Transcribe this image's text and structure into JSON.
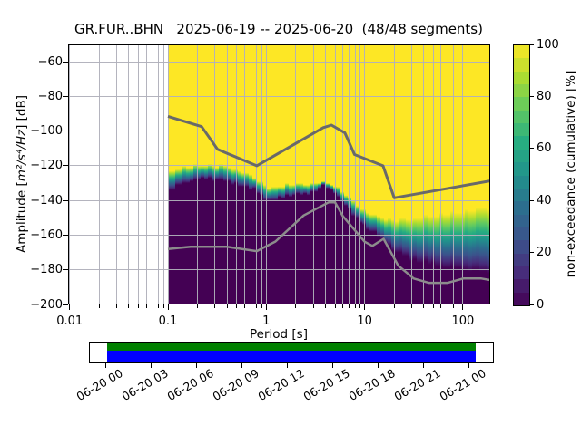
{
  "title": "GR.FUR..BHN   2025-06-19 -- 2025-06-20  (48/48 segments)",
  "chart_data": {
    "type": "heatmap",
    "title": "GR.FUR..BHN   2025-06-19 -- 2025-06-20  (48/48 segments)",
    "xlabel": "Period [s]",
    "ylabel": {
      "pre": "Amplitude [",
      "math": "m²/s⁴/Hz",
      "post": "] [dB]"
    },
    "x_scale": "log",
    "xlim": [
      0.01,
      190
    ],
    "ylim": [
      -200,
      -50
    ],
    "grid": true,
    "x_ticks": [
      {
        "v": 0.01,
        "label": "0.01"
      },
      {
        "v": 0.1,
        "label": "0.1"
      },
      {
        "v": 1,
        "label": "1"
      },
      {
        "v": 10,
        "label": "10"
      },
      {
        "v": 100,
        "label": "100"
      }
    ],
    "y_ticks": [
      {
        "v": -60,
        "label": "−60"
      },
      {
        "v": -80,
        "label": "−80"
      },
      {
        "v": -100,
        "label": "−100"
      },
      {
        "v": -120,
        "label": "−120"
      },
      {
        "v": -140,
        "label": "−140"
      },
      {
        "v": -160,
        "label": "−160"
      },
      {
        "v": -180,
        "label": "−180"
      },
      {
        "v": -200,
        "label": "−200"
      }
    ],
    "data_period_range": [
      0.1,
      190
    ],
    "cumulative_band": {
      "note": "non-exceedance transition band: db_100 = level where cumulative reaches 100% (yellow above), db_0 = level where cumulative is 0% (dark below)",
      "points": [
        {
          "p": 0.1,
          "db_100": -124.5,
          "db_0": -136.0
        },
        {
          "p": 0.13,
          "db_100": -121.5,
          "db_0": -131.0
        },
        {
          "p": 0.18,
          "db_100": -120.0,
          "db_0": -128.5
        },
        {
          "p": 0.26,
          "db_100": -119.5,
          "db_0": -127.5
        },
        {
          "p": 0.38,
          "db_100": -120.5,
          "db_0": -129.0
        },
        {
          "p": 0.55,
          "db_100": -123.0,
          "db_0": -131.5
        },
        {
          "p": 0.75,
          "db_100": -126.5,
          "db_0": -134.0
        },
        {
          "p": 1.1,
          "db_100": -133.5,
          "db_0": -141.0
        },
        {
          "p": 1.6,
          "db_100": -131.0,
          "db_0": -137.5
        },
        {
          "p": 2.6,
          "db_100": -130.5,
          "db_0": -136.5
        },
        {
          "p": 3.9,
          "db_100": -129.5,
          "db_0": -132.0
        },
        {
          "p": 5.0,
          "db_100": -131.5,
          "db_0": -136.0
        },
        {
          "p": 6.5,
          "db_100": -136.5,
          "db_0": -143.0
        },
        {
          "p": 8.0,
          "db_100": -142.0,
          "db_0": -150.0
        },
        {
          "p": 10.5,
          "db_100": -146.5,
          "db_0": -156.0
        },
        {
          "p": 14.0,
          "db_100": -149.5,
          "db_0": -161.0
        },
        {
          "p": 20.0,
          "db_100": -151.0,
          "db_0": -169.0
        },
        {
          "p": 30.0,
          "db_100": -150.5,
          "db_0": -174.0
        },
        {
          "p": 45.0,
          "db_100": -149.0,
          "db_0": -176.5
        },
        {
          "p": 70.0,
          "db_100": -147.5,
          "db_0": -178.5
        },
        {
          "p": 110,
          "db_100": -146.0,
          "db_0": -180.0
        },
        {
          "p": 190,
          "db_100": -143.5,
          "db_0": -181.5
        }
      ]
    },
    "noise_models": {
      "nhnm": [
        [
          0.1,
          -91.5
        ],
        [
          0.22,
          -97.4
        ],
        [
          0.32,
          -110.5
        ],
        [
          0.8,
          -120.0
        ],
        [
          3.8,
          -98.0
        ],
        [
          4.6,
          -96.5
        ],
        [
          6.3,
          -101.0
        ],
        [
          7.9,
          -113.5
        ],
        [
          15.4,
          -120.0
        ],
        [
          20.0,
          -138.5
        ],
        [
          190.0,
          -128.7
        ]
      ],
      "nlnm": [
        [
          0.1,
          -168.0
        ],
        [
          0.17,
          -166.7
        ],
        [
          0.4,
          -166.7
        ],
        [
          0.8,
          -169.2
        ],
        [
          1.24,
          -163.7
        ],
        [
          2.4,
          -148.6
        ],
        [
          4.3,
          -141.1
        ],
        [
          5.0,
          -141.1
        ],
        [
          6.0,
          -149.0
        ],
        [
          10.0,
          -163.8
        ],
        [
          12.0,
          -166.2
        ],
        [
          15.6,
          -162.1
        ],
        [
          21.9,
          -177.5
        ],
        [
          31.6,
          -185.0
        ],
        [
          45.0,
          -187.5
        ],
        [
          70.0,
          -187.5
        ],
        [
          101.0,
          -185.0
        ],
        [
          154.0,
          -185.0
        ],
        [
          190.0,
          -185.9
        ]
      ]
    },
    "colorbar": {
      "label": "non-exceedance (cumulative) [%]",
      "ticks": [
        {
          "v": 100,
          "label": "100"
        },
        {
          "v": 80,
          "label": "80"
        },
        {
          "v": 60,
          "label": "60"
        },
        {
          "v": 40,
          "label": "40"
        },
        {
          "v": 20,
          "label": "20"
        },
        {
          "v": 0,
          "label": "0"
        }
      ],
      "steps": 20
    },
    "colors": {
      "viridis": [
        "#440154",
        "#472d7b",
        "#3b528b",
        "#2c6e8e",
        "#21918c",
        "#27ad81",
        "#5ec962",
        "#aadc32",
        "#fde725"
      ],
      "zero_fill": "#440154",
      "full_fill": "#fde725",
      "grid": "#b0b0ba",
      "nhnm_line": "#696969",
      "nlnm_line": "#8c8c8c"
    }
  },
  "coverage": {
    "tick_labels": [
      "06-20 00",
      "06-20 03",
      "06-20 06",
      "06-20 09",
      "06-20 12",
      "06-20 15",
      "06-20 18",
      "06-20 21",
      "06-21 00"
    ],
    "top_bar_color": "#008000",
    "bottom_bar_color": "#0000ff"
  }
}
